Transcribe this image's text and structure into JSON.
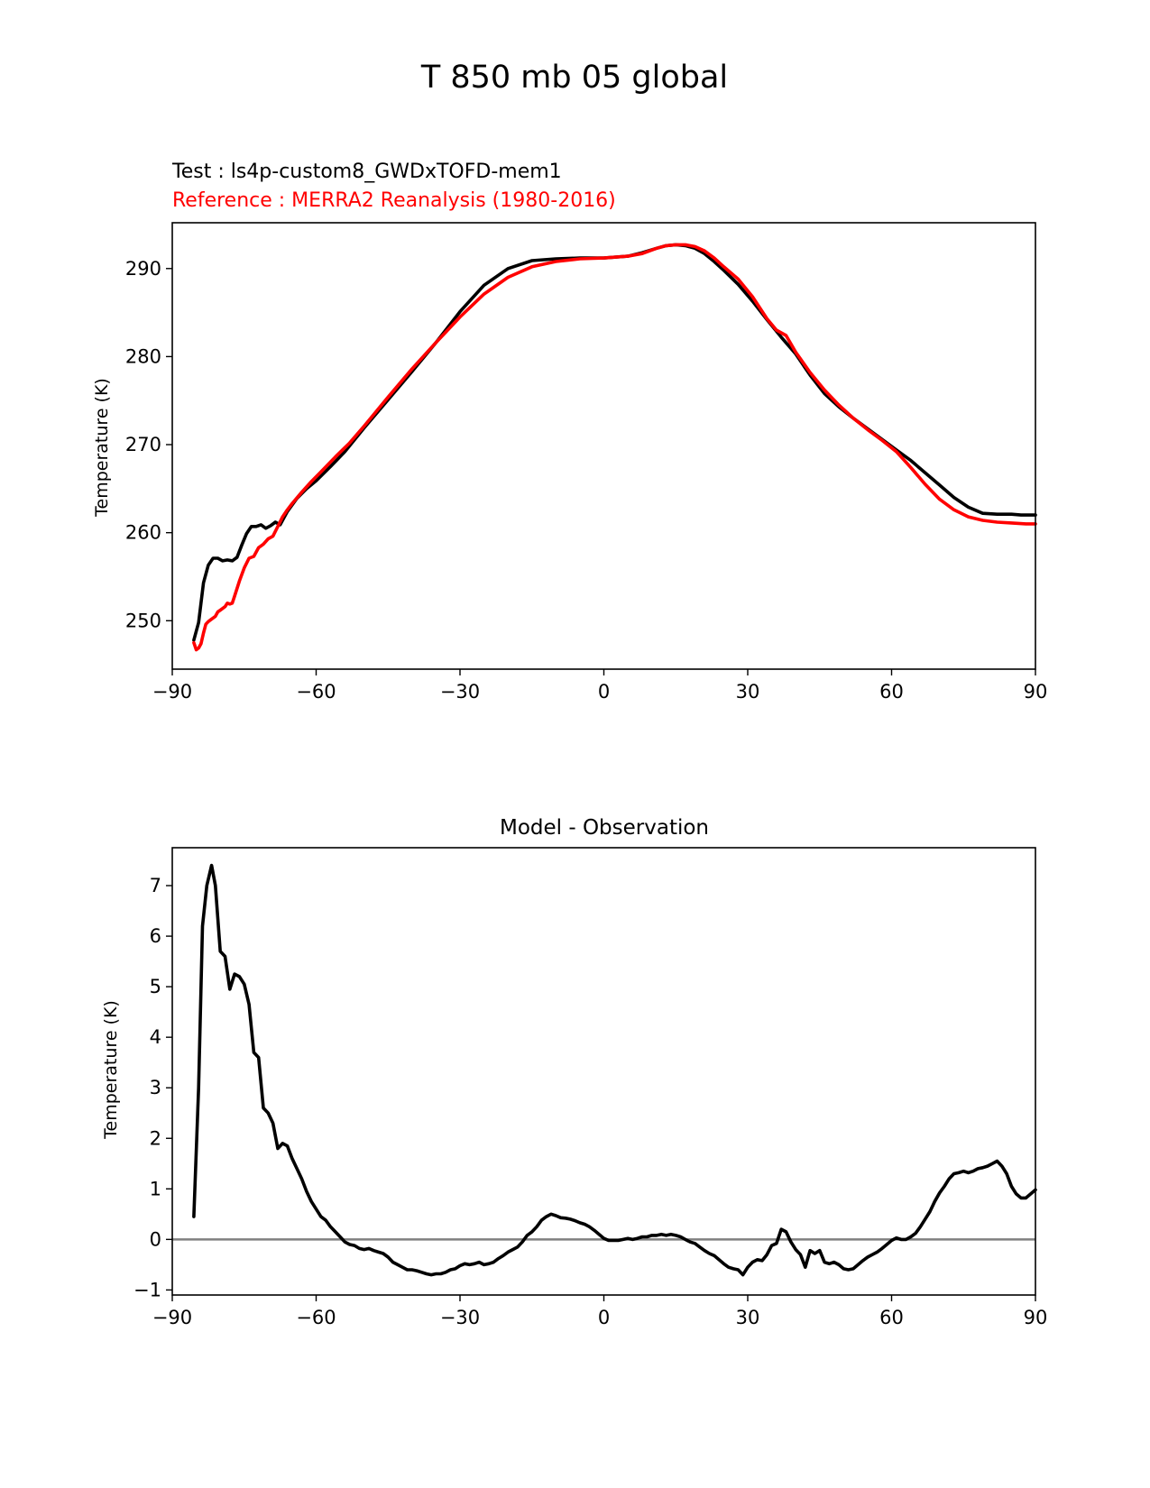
{
  "figure": {
    "title": "T 850 mb 05 global",
    "test_label": "Test : ls4p-custom8_GWDxTOFD-mem1",
    "reference_label": "Reference : MERRA2 Reanalysis (1980-2016)"
  },
  "colors": {
    "test": "#000000",
    "reference": "#ff0000",
    "zero_line": "#808080",
    "axes": "#000000"
  },
  "chart_data": [
    {
      "type": "line",
      "title": "",
      "xlabel": "",
      "ylabel": "Temperature (K)",
      "xlim": [
        -90,
        90
      ],
      "ylim": [
        244.5,
        295.2
      ],
      "xticks": [
        -90,
        -60,
        -30,
        0,
        30,
        60,
        90
      ],
      "xtick_labels": [
        "−90",
        "−60",
        "−30",
        "0",
        "30",
        "60",
        "90"
      ],
      "yticks": [
        250,
        260,
        270,
        280,
        290
      ],
      "ytick_labels": [
        "250",
        "260",
        "270",
        "280",
        "290"
      ],
      "series": [
        {
          "name": "Test",
          "color": "#000000",
          "x": [
            -85.5,
            -84.5,
            -83.5,
            -82.5,
            -81.5,
            -80.5,
            -79.5,
            -78.5,
            -77.5,
            -76.5,
            -75.5,
            -74.5,
            -73.5,
            -72.5,
            -71.5,
            -70.5,
            -69.5,
            -68.5,
            -67.5,
            -66,
            -64,
            -62,
            -60,
            -57,
            -54,
            -50,
            -45,
            -40,
            -35,
            -30,
            -25,
            -20,
            -15,
            -10,
            -5,
            0,
            5,
            8,
            11,
            13,
            15,
            17,
            19,
            21,
            23,
            25,
            28,
            31,
            34,
            37,
            40,
            43,
            46,
            49,
            52,
            55,
            58,
            61,
            64,
            67,
            70,
            73,
            76,
            79,
            82,
            85,
            87,
            89,
            90
          ],
          "values": [
            247.8,
            249.8,
            254.3,
            256.3,
            257.1,
            257.1,
            256.8,
            256.9,
            256.8,
            257.2,
            258.6,
            259.9,
            260.7,
            260.7,
            260.9,
            260.5,
            260.8,
            261.2,
            260.9,
            262.4,
            263.9,
            265.0,
            265.9,
            267.5,
            269.2,
            271.9,
            275.1,
            278.3,
            281.6,
            285.1,
            288.1,
            290.0,
            290.9,
            291.1,
            291.2,
            291.2,
            291.4,
            291.8,
            292.3,
            292.6,
            292.7,
            292.6,
            292.3,
            291.7,
            290.8,
            289.8,
            288.2,
            286.3,
            284.2,
            282.2,
            280.3,
            277.9,
            275.8,
            274.3,
            273.0,
            271.8,
            270.6,
            269.4,
            268.2,
            266.8,
            265.4,
            264.0,
            262.9,
            262.2,
            262.1,
            262.1,
            262.0,
            262.0,
            262.0
          ]
        },
        {
          "name": "Reference",
          "color": "#ff0000",
          "x": [
            -85.5,
            -85,
            -84.5,
            -84,
            -83.5,
            -83,
            -82.5,
            -82,
            -81,
            -80.5,
            -80,
            -79,
            -78.5,
            -78,
            -77.5,
            -77,
            -76,
            -75,
            -74,
            -73,
            -72,
            -71,
            -70,
            -69,
            -68,
            -67,
            -66,
            -65,
            -63,
            -61,
            -59,
            -56,
            -53,
            -50,
            -45,
            -40,
            -35,
            -30,
            -25,
            -20,
            -15,
            -10,
            -5,
            0,
            5,
            8,
            11,
            13,
            15,
            17,
            19,
            21,
            23,
            25,
            28,
            31,
            34,
            36,
            38,
            40,
            43,
            46,
            49,
            52,
            55,
            58,
            61,
            64,
            67,
            70,
            73,
            76,
            79,
            82,
            85,
            88,
            90
          ],
          "values": [
            247.5,
            246.7,
            246.9,
            247.4,
            248.6,
            249.6,
            249.9,
            250.1,
            250.5,
            251.0,
            251.2,
            251.6,
            252.0,
            251.9,
            252.0,
            252.8,
            254.5,
            256.0,
            257.1,
            257.3,
            258.3,
            258.7,
            259.3,
            259.6,
            260.7,
            261.8,
            262.6,
            263.3,
            264.6,
            265.8,
            266.9,
            268.6,
            270.2,
            272.1,
            275.4,
            278.6,
            281.6,
            284.5,
            287.1,
            289.0,
            290.2,
            290.8,
            291.1,
            291.2,
            291.4,
            291.7,
            292.3,
            292.6,
            292.7,
            292.7,
            292.5,
            292.0,
            291.2,
            290.2,
            288.8,
            286.8,
            284.3,
            283.0,
            282.4,
            280.5,
            278.2,
            276.2,
            274.5,
            273.0,
            271.7,
            270.5,
            269.2,
            267.4,
            265.5,
            263.8,
            262.6,
            261.8,
            261.4,
            261.2,
            261.1,
            261.0,
            261.0
          ]
        }
      ]
    },
    {
      "type": "line",
      "title": "Model - Observation",
      "xlabel": "",
      "ylabel": "Temperature (K)",
      "xlim": [
        -90,
        90
      ],
      "ylim": [
        -1.1,
        7.75
      ],
      "xticks": [
        -90,
        -60,
        -30,
        0,
        30,
        60,
        90
      ],
      "xtick_labels": [
        "−90",
        "−60",
        "−30",
        "0",
        "30",
        "60",
        "90"
      ],
      "yticks": [
        -1,
        0,
        1,
        2,
        3,
        4,
        5,
        6,
        7
      ],
      "ytick_labels": [
        "−1",
        "0",
        "1",
        "2",
        "3",
        "4",
        "5",
        "6",
        "7"
      ],
      "zero_line": 0,
      "series": [
        {
          "name": "Model - Observation",
          "color": "#000000",
          "x": [
            -85.5,
            -84.5,
            -83.7,
            -82.8,
            -81.8,
            -81,
            -80,
            -79,
            -78,
            -77,
            -76,
            -75,
            -74,
            -73,
            -72,
            -71,
            -70,
            -69,
            -68,
            -67,
            -66,
            -65,
            -64,
            -63,
            -62,
            -61,
            -60,
            -59,
            -58,
            -57,
            -56,
            -55,
            -54,
            -53,
            -52,
            -51,
            -50,
            -49,
            -48,
            -47,
            -46,
            -45,
            -44,
            -43,
            -42,
            -41,
            -40,
            -39,
            -38,
            -37,
            -36,
            -35,
            -34,
            -33,
            -32,
            -31,
            -30,
            -29,
            -28,
            -27,
            -26,
            -25,
            -24,
            -23,
            -22,
            -21,
            -20,
            -19,
            -18,
            -17,
            -16,
            -15,
            -14,
            -13,
            -12,
            -11,
            -10,
            -9,
            -8,
            -7,
            -6,
            -5,
            -4,
            -3,
            -2,
            -1,
            0,
            1,
            2,
            3,
            4,
            5,
            6,
            7,
            8,
            9,
            10,
            11,
            12,
            13,
            14,
            15,
            16,
            17,
            18,
            19,
            20,
            21,
            22,
            23,
            24,
            25,
            26,
            27,
            28,
            29,
            30,
            31,
            32,
            33,
            34,
            35,
            36,
            37,
            38,
            39,
            40,
            41,
            42,
            43,
            44,
            45,
            46,
            47,
            48,
            49,
            50,
            51,
            52,
            53,
            54,
            55,
            56,
            57,
            58,
            59,
            60,
            61,
            62,
            63,
            64,
            65,
            66,
            67,
            68,
            69,
            70,
            71,
            72,
            73,
            74,
            75,
            76,
            77,
            78,
            79,
            80,
            81,
            82,
            83,
            84,
            85,
            86,
            87,
            88,
            89,
            90
          ],
          "values": [
            0.45,
            3.0,
            6.2,
            7.0,
            7.4,
            7.0,
            5.7,
            5.6,
            4.95,
            5.25,
            5.2,
            5.05,
            4.65,
            3.7,
            3.6,
            2.6,
            2.5,
            2.3,
            1.8,
            1.9,
            1.85,
            1.6,
            1.4,
            1.2,
            0.95,
            0.75,
            0.6,
            0.45,
            0.38,
            0.25,
            0.15,
            0.05,
            -0.05,
            -0.1,
            -0.12,
            -0.18,
            -0.2,
            -0.18,
            -0.22,
            -0.25,
            -0.28,
            -0.35,
            -0.45,
            -0.5,
            -0.55,
            -0.6,
            -0.6,
            -0.62,
            -0.65,
            -0.68,
            -0.7,
            -0.68,
            -0.68,
            -0.65,
            -0.6,
            -0.58,
            -0.52,
            -0.48,
            -0.5,
            -0.48,
            -0.45,
            -0.5,
            -0.48,
            -0.45,
            -0.38,
            -0.32,
            -0.25,
            -0.2,
            -0.15,
            -0.05,
            0.08,
            0.15,
            0.25,
            0.38,
            0.45,
            0.5,
            0.47,
            0.43,
            0.42,
            0.4,
            0.37,
            0.33,
            0.3,
            0.25,
            0.18,
            0.1,
            0.02,
            -0.02,
            -0.02,
            -0.02,
            0.0,
            0.02,
            0.0,
            0.02,
            0.05,
            0.05,
            0.08,
            0.08,
            0.1,
            0.08,
            0.1,
            0.08,
            0.05,
            0.0,
            -0.05,
            -0.08,
            -0.15,
            -0.22,
            -0.28,
            -0.32,
            -0.4,
            -0.48,
            -0.55,
            -0.58,
            -0.6,
            -0.7,
            -0.55,
            -0.45,
            -0.4,
            -0.42,
            -0.3,
            -0.12,
            -0.08,
            0.2,
            0.15,
            -0.05,
            -0.2,
            -0.3,
            -0.55,
            -0.22,
            -0.28,
            -0.22,
            -0.45,
            -0.48,
            -0.45,
            -0.5,
            -0.58,
            -0.6,
            -0.58,
            -0.5,
            -0.42,
            -0.35,
            -0.3,
            -0.25,
            -0.18,
            -0.1,
            -0.02,
            0.03,
            0.0,
            0.0,
            0.05,
            0.12,
            0.25,
            0.4,
            0.55,
            0.75,
            0.92,
            1.05,
            1.2,
            1.3,
            1.32,
            1.35,
            1.32,
            1.35,
            1.4,
            1.42,
            1.45,
            1.5,
            1.55,
            1.45,
            1.3,
            1.05,
            0.9,
            0.82,
            0.82,
            0.9,
            0.98
          ]
        }
      ]
    }
  ]
}
